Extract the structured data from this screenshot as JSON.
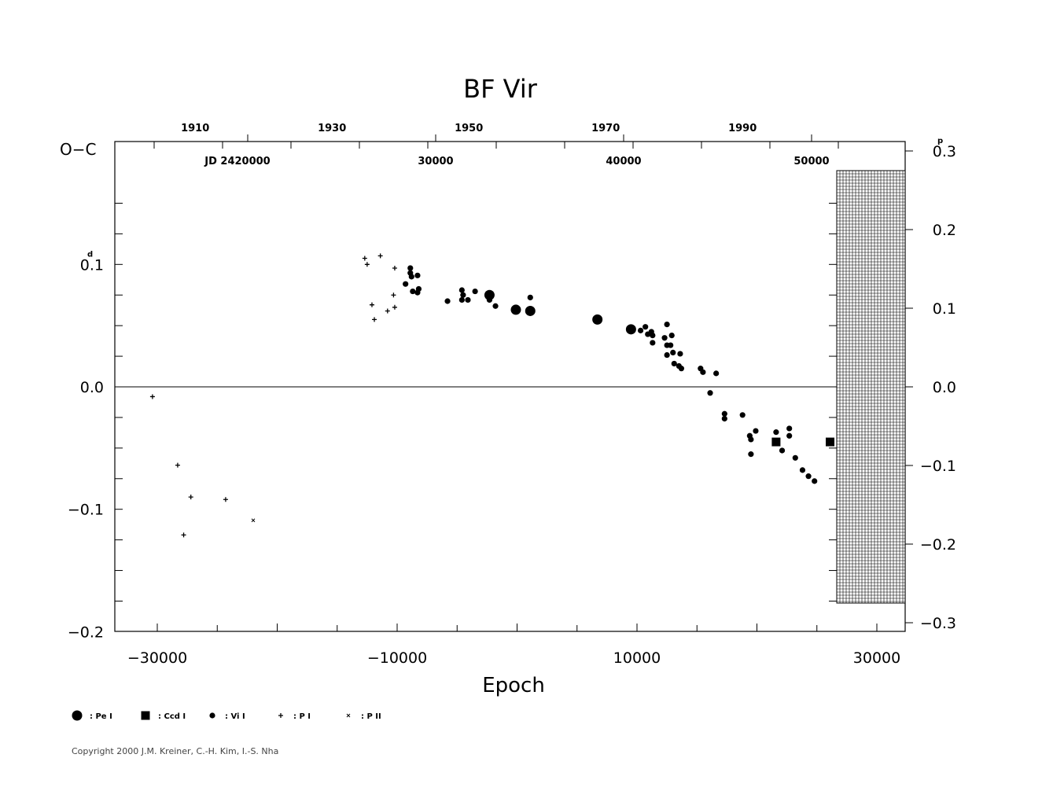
{
  "chart_data": {
    "type": "scatter",
    "title": "BF  Vir",
    "xlabel": "Epoch",
    "ylabel": "O−C",
    "xlim": [
      -33000,
      34500
    ],
    "ylim": [
      -0.2,
      0.2
    ],
    "y2lim": [
      -0.3,
      0.3
    ],
    "x_ticks": [
      -30000,
      -10000,
      10000,
      30000
    ],
    "x_tick_labels": [
      "−30000",
      "−10000",
      "10000",
      "30000"
    ],
    "y_ticks": [
      0.1,
      0.0,
      -0.1,
      -0.2
    ],
    "y_tick_labels": [
      "0.1",
      "0.0",
      "−0.1",
      "−0.2"
    ],
    "y_unit_mark": "d",
    "y2_ticks": [
      0.3,
      0.2,
      0.1,
      0.0,
      -0.1,
      -0.2,
      -0.3
    ],
    "y2_tick_labels": [
      "0.3",
      "0.2",
      "0.1",
      "0.0",
      "−0.1",
      "−0.2",
      "−0.3"
    ],
    "y2_unit_mark": "p",
    "top_year_ticks": [
      1910,
      1930,
      1950,
      1970,
      1990
    ],
    "top_jd_ticks": [
      "JD  2420000",
      "30000",
      "40000",
      "50000"
    ],
    "grid": false,
    "zero_line": true,
    "shaded_region": "future (hatched)",
    "legend_position": "bottom-left",
    "legend": [
      {
        "symbol": "big-dot",
        "label": ": Pe  I"
      },
      {
        "symbol": "square",
        "label": ": Ccd  I"
      },
      {
        "symbol": "dot",
        "label": ": Vi  I"
      },
      {
        "symbol": "plus",
        "label": ": P  I"
      },
      {
        "symbol": "cross",
        "label": ": P  II"
      }
    ],
    "series": [
      {
        "type": "P I",
        "points": [
          [
            -30400,
            -0.008
          ],
          [
            -28300,
            -0.064
          ],
          [
            -27800,
            -0.121
          ],
          [
            -27200,
            -0.09
          ],
          [
            -24300,
            -0.092
          ],
          [
            -12700,
            0.105
          ],
          [
            -12500,
            0.1
          ],
          [
            -12100,
            0.067
          ],
          [
            -11900,
            0.055
          ],
          [
            -11400,
            0.107
          ],
          [
            -10800,
            0.062
          ],
          [
            -10200,
            0.065
          ],
          [
            -10300,
            0.075
          ],
          [
            -10200,
            0.097
          ]
        ]
      },
      {
        "type": "P II",
        "points": [
          [
            -22000,
            -0.109
          ]
        ]
      },
      {
        "type": "Vi I",
        "points": [
          [
            -9300,
            0.084
          ],
          [
            -8900,
            0.097
          ],
          [
            -8900,
            0.093
          ],
          [
            -8800,
            0.09
          ],
          [
            -8700,
            0.078
          ],
          [
            -8300,
            0.077
          ],
          [
            -8200,
            0.08
          ],
          [
            -8300,
            0.091
          ],
          [
            -5800,
            0.07
          ],
          [
            -4600,
            0.079
          ],
          [
            -4500,
            0.075
          ],
          [
            -4600,
            0.071
          ],
          [
            -4100,
            0.071
          ],
          [
            -3500,
            0.078
          ],
          [
            -2300,
            0.071
          ],
          [
            -1800,
            0.066
          ],
          [
            1100,
            0.073
          ],
          [
            10300,
            0.046
          ],
          [
            10700,
            0.049
          ],
          [
            10900,
            0.043
          ],
          [
            11200,
            0.045
          ],
          [
            11300,
            0.042
          ],
          [
            11300,
            0.036
          ],
          [
            12500,
            0.051
          ],
          [
            12300,
            0.04
          ],
          [
            12500,
            0.034
          ],
          [
            12500,
            0.026
          ],
          [
            12800,
            0.034
          ],
          [
            12900,
            0.042
          ],
          [
            13000,
            0.028
          ],
          [
            13100,
            0.019
          ],
          [
            13500,
            0.017
          ],
          [
            13700,
            0.015
          ],
          [
            13600,
            0.027
          ],
          [
            15300,
            0.015
          ],
          [
            15500,
            0.012
          ],
          [
            16100,
            -0.005
          ],
          [
            16600,
            0.011
          ],
          [
            17300,
            -0.022
          ],
          [
            17300,
            -0.026
          ],
          [
            18800,
            -0.023
          ],
          [
            19400,
            -0.04
          ],
          [
            19500,
            -0.043
          ],
          [
            19500,
            -0.055
          ],
          [
            19900,
            -0.036
          ],
          [
            21600,
            -0.037
          ],
          [
            22100,
            -0.052
          ],
          [
            22700,
            -0.034
          ],
          [
            22700,
            -0.04
          ],
          [
            23200,
            -0.058
          ],
          [
            23800,
            -0.068
          ],
          [
            24300,
            -0.073
          ],
          [
            24800,
            -0.077
          ]
        ]
      },
      {
        "type": "Pe I",
        "points": [
          [
            -2300,
            0.075
          ],
          [
            -100,
            0.063
          ],
          [
            1100,
            0.062
          ],
          [
            6700,
            0.055
          ],
          [
            9500,
            0.047
          ]
        ]
      },
      {
        "type": "Ccd I",
        "points": [
          [
            21600,
            -0.045
          ],
          [
            26100,
            -0.045
          ]
        ]
      }
    ]
  },
  "copyright": "Copyright 2000 J.M. Kreiner, C.-H. Kim, I.-S. Nha"
}
